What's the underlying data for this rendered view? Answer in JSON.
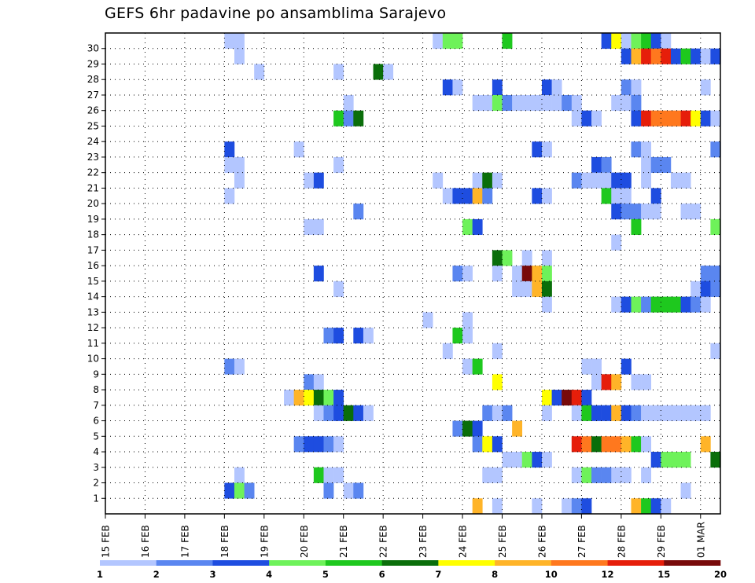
{
  "title": "GEFS 6hr padavine po ansamblima Sarajevo",
  "chart_data": {
    "type": "heatmap",
    "title": "GEFS 6hr padavine po ansamblima Sarajevo",
    "x_ticks": [
      "15 FEB",
      "16 FEB",
      "17 FEB",
      "18 FEB",
      "19 FEB",
      "20 FEB",
      "21 FEB",
      "22 FEB",
      "23 FEB",
      "24 FEB",
      "25 FEB",
      "26 FEB",
      "27 FEB",
      "28 FEB",
      "29 FEB",
      "01 MAR"
    ],
    "x_range": [
      0,
      61
    ],
    "y_ticks": [
      1,
      2,
      3,
      4,
      5,
      6,
      7,
      8,
      9,
      10,
      11,
      12,
      13,
      14,
      15,
      16,
      17,
      18,
      19,
      20,
      21,
      22,
      23,
      24,
      25,
      26,
      27,
      28,
      29,
      30
    ],
    "y_range": [
      0,
      30
    ],
    "grid": true,
    "colorbar": {
      "labels": [
        "1",
        "2",
        "3",
        "4",
        "5",
        "6",
        "7",
        "8",
        "10",
        "12",
        "15",
        "20"
      ],
      "colors": [
        "#b3c6ff",
        "#5a86f0",
        "#1e4de0",
        "#6ef25a",
        "#1ec81e",
        "#0a6e0a",
        "#ffff00",
        "#ffb428",
        "#ff781e",
        "#e61e0a",
        "#780a0a"
      ]
    },
    "cells": [
      [
        12,
        30,
        0
      ],
      [
        13,
        30,
        0
      ],
      [
        33,
        30,
        0
      ],
      [
        34,
        30,
        3
      ],
      [
        35,
        30,
        3
      ],
      [
        40,
        30,
        4
      ],
      [
        50,
        30,
        2
      ],
      [
        51,
        30,
        6
      ],
      [
        52,
        30,
        0
      ],
      [
        53,
        30,
        3
      ],
      [
        54,
        30,
        4
      ],
      [
        55,
        30,
        2
      ],
      [
        56,
        30,
        0
      ],
      [
        13,
        29,
        0
      ],
      [
        52,
        29,
        2
      ],
      [
        53,
        29,
        7
      ],
      [
        54,
        29,
        9
      ],
      [
        55,
        29,
        8
      ],
      [
        56,
        29,
        9
      ],
      [
        57,
        29,
        2
      ],
      [
        58,
        29,
        4
      ],
      [
        59,
        29,
        2
      ],
      [
        60,
        29,
        0
      ],
      [
        61,
        29,
        2
      ],
      [
        15,
        28,
        0
      ],
      [
        23,
        28,
        0
      ],
      [
        27,
        28,
        5
      ],
      [
        28,
        28,
        0
      ],
      [
        34,
        27,
        2
      ],
      [
        35,
        27,
        0
      ],
      [
        39,
        27,
        2
      ],
      [
        44,
        27,
        2
      ],
      [
        45,
        27,
        0
      ],
      [
        52,
        27,
        1
      ],
      [
        53,
        27,
        0
      ],
      [
        60,
        27,
        0
      ],
      [
        24,
        26,
        0
      ],
      [
        37,
        26,
        0
      ],
      [
        38,
        26,
        0
      ],
      [
        39,
        26,
        3
      ],
      [
        40,
        26,
        1
      ],
      [
        41,
        26,
        0
      ],
      [
        42,
        26,
        0
      ],
      [
        43,
        26,
        0
      ],
      [
        44,
        26,
        0
      ],
      [
        45,
        26,
        0
      ],
      [
        46,
        26,
        1
      ],
      [
        47,
        26,
        0
      ],
      [
        51,
        26,
        0
      ],
      [
        52,
        26,
        0
      ],
      [
        53,
        26,
        1
      ],
      [
        23,
        25,
        4
      ],
      [
        24,
        25,
        1
      ],
      [
        25,
        25,
        5
      ],
      [
        47,
        25,
        0
      ],
      [
        48,
        25,
        2
      ],
      [
        49,
        25,
        0
      ],
      [
        53,
        25,
        2
      ],
      [
        54,
        25,
        9
      ],
      [
        55,
        25,
        8
      ],
      [
        56,
        25,
        8
      ],
      [
        57,
        25,
        8
      ],
      [
        58,
        25,
        9
      ],
      [
        59,
        25,
        6
      ],
      [
        60,
        25,
        2
      ],
      [
        61,
        25,
        0
      ],
      [
        12,
        23,
        2
      ],
      [
        19,
        23,
        0
      ],
      [
        43,
        23,
        2
      ],
      [
        44,
        23,
        0
      ],
      [
        53,
        23,
        1
      ],
      [
        54,
        23,
        0
      ],
      [
        61,
        23,
        1
      ],
      [
        12,
        22,
        0
      ],
      [
        13,
        22,
        0
      ],
      [
        23,
        22,
        0
      ],
      [
        49,
        22,
        2
      ],
      [
        50,
        22,
        1
      ],
      [
        54,
        22,
        0
      ],
      [
        55,
        22,
        1
      ],
      [
        56,
        22,
        1
      ],
      [
        13,
        21,
        0
      ],
      [
        20,
        21,
        0
      ],
      [
        21,
        21,
        2
      ],
      [
        33,
        21,
        0
      ],
      [
        37,
        21,
        0
      ],
      [
        38,
        21,
        5
      ],
      [
        39,
        21,
        0
      ],
      [
        47,
        21,
        1
      ],
      [
        48,
        21,
        0
      ],
      [
        49,
        21,
        0
      ],
      [
        50,
        21,
        0
      ],
      [
        51,
        21,
        2
      ],
      [
        52,
        21,
        2
      ],
      [
        54,
        21,
        0
      ],
      [
        57,
        21,
        0
      ],
      [
        58,
        21,
        0
      ],
      [
        12,
        20,
        0
      ],
      [
        34,
        20,
        0
      ],
      [
        35,
        20,
        2
      ],
      [
        36,
        20,
        2
      ],
      [
        37,
        20,
        7
      ],
      [
        38,
        20,
        1
      ],
      [
        43,
        20,
        2
      ],
      [
        44,
        20,
        0
      ],
      [
        50,
        20,
        4
      ],
      [
        51,
        20,
        0
      ],
      [
        52,
        20,
        0
      ],
      [
        55,
        20,
        2
      ],
      [
        25,
        19,
        1
      ],
      [
        51,
        19,
        2
      ],
      [
        52,
        19,
        1
      ],
      [
        53,
        19,
        1
      ],
      [
        54,
        19,
        0
      ],
      [
        55,
        19,
        0
      ],
      [
        58,
        19,
        0
      ],
      [
        59,
        19,
        0
      ],
      [
        20,
        18,
        0
      ],
      [
        21,
        18,
        0
      ],
      [
        36,
        18,
        3
      ],
      [
        37,
        18,
        2
      ],
      [
        53,
        18,
        4
      ],
      [
        61,
        18,
        3
      ],
      [
        51,
        17,
        0
      ],
      [
        39,
        16,
        5
      ],
      [
        40,
        16,
        3
      ],
      [
        42,
        16,
        0
      ],
      [
        44,
        16,
        0
      ],
      [
        21,
        15,
        2
      ],
      [
        35,
        15,
        1
      ],
      [
        36,
        15,
        0
      ],
      [
        39,
        15,
        0
      ],
      [
        41,
        15,
        0
      ],
      [
        42,
        15,
        10
      ],
      [
        43,
        15,
        7
      ],
      [
        44,
        15,
        3
      ],
      [
        60,
        15,
        1
      ],
      [
        61,
        15,
        1
      ],
      [
        23,
        14,
        0
      ],
      [
        41,
        14,
        0
      ],
      [
        42,
        14,
        0
      ],
      [
        43,
        14,
        7
      ],
      [
        44,
        14,
        5
      ],
      [
        59,
        14,
        0
      ],
      [
        60,
        14,
        2
      ],
      [
        61,
        14,
        1
      ],
      [
        44,
        13,
        0
      ],
      [
        51,
        13,
        0
      ],
      [
        52,
        13,
        2
      ],
      [
        53,
        13,
        3
      ],
      [
        54,
        13,
        1
      ],
      [
        55,
        13,
        4
      ],
      [
        56,
        13,
        4
      ],
      [
        57,
        13,
        4
      ],
      [
        58,
        13,
        2
      ],
      [
        59,
        13,
        1
      ],
      [
        60,
        13,
        0
      ],
      [
        32,
        12,
        0
      ],
      [
        36,
        12,
        0
      ],
      [
        22,
        11,
        1
      ],
      [
        23,
        11,
        2
      ],
      [
        25,
        11,
        2
      ],
      [
        26,
        11,
        0
      ],
      [
        35,
        11,
        4
      ],
      [
        36,
        11,
        0
      ],
      [
        34,
        10,
        0
      ],
      [
        39,
        10,
        0
      ],
      [
        61,
        10,
        0
      ],
      [
        12,
        9,
        1
      ],
      [
        13,
        9,
        0
      ],
      [
        36,
        9,
        0
      ],
      [
        37,
        9,
        4
      ],
      [
        48,
        9,
        0
      ],
      [
        49,
        9,
        0
      ],
      [
        52,
        9,
        2
      ],
      [
        20,
        8,
        1
      ],
      [
        21,
        8,
        0
      ],
      [
        39,
        8,
        6
      ],
      [
        49,
        8,
        0
      ],
      [
        50,
        8,
        9
      ],
      [
        51,
        8,
        7
      ],
      [
        53,
        8,
        0
      ],
      [
        54,
        8,
        0
      ],
      [
        18,
        7,
        0
      ],
      [
        19,
        7,
        7
      ],
      [
        20,
        7,
        6
      ],
      [
        21,
        7,
        5
      ],
      [
        22,
        7,
        3
      ],
      [
        23,
        7,
        2
      ],
      [
        44,
        7,
        6
      ],
      [
        45,
        7,
        2
      ],
      [
        46,
        7,
        10
      ],
      [
        47,
        7,
        9
      ],
      [
        48,
        7,
        2
      ],
      [
        21,
        6,
        0
      ],
      [
        22,
        6,
        1
      ],
      [
        23,
        6,
        2
      ],
      [
        24,
        6,
        5
      ],
      [
        25,
        6,
        2
      ],
      [
        26,
        6,
        0
      ],
      [
        38,
        6,
        1
      ],
      [
        39,
        6,
        0
      ],
      [
        40,
        6,
        1
      ],
      [
        44,
        6,
        0
      ],
      [
        47,
        6,
        0
      ],
      [
        48,
        6,
        4
      ],
      [
        49,
        6,
        2
      ],
      [
        50,
        6,
        2
      ],
      [
        51,
        6,
        7
      ],
      [
        52,
        6,
        2
      ],
      [
        53,
        6,
        1
      ],
      [
        54,
        6,
        0
      ],
      [
        55,
        6,
        0
      ],
      [
        56,
        6,
        0
      ],
      [
        57,
        6,
        0
      ],
      [
        58,
        6,
        0
      ],
      [
        59,
        6,
        0
      ],
      [
        60,
        6,
        0
      ],
      [
        35,
        5,
        1
      ],
      [
        36,
        5,
        5
      ],
      [
        37,
        5,
        2
      ],
      [
        41,
        5,
        7
      ],
      [
        19,
        4,
        1
      ],
      [
        20,
        4,
        2
      ],
      [
        21,
        4,
        2
      ],
      [
        22,
        4,
        1
      ],
      [
        23,
        4,
        0
      ],
      [
        37,
        4,
        1
      ],
      [
        38,
        4,
        6
      ],
      [
        39,
        4,
        2
      ],
      [
        47,
        4,
        9
      ],
      [
        48,
        4,
        8
      ],
      [
        49,
        4,
        5
      ],
      [
        50,
        4,
        8
      ],
      [
        51,
        4,
        8
      ],
      [
        52,
        4,
        7
      ],
      [
        53,
        4,
        4
      ],
      [
        54,
        4,
        0
      ],
      [
        60,
        4,
        7
      ],
      [
        40,
        3,
        0
      ],
      [
        41,
        3,
        0
      ],
      [
        42,
        3,
        3
      ],
      [
        43,
        3,
        2
      ],
      [
        44,
        3,
        0
      ],
      [
        55,
        3,
        2
      ],
      [
        56,
        3,
        3
      ],
      [
        57,
        3,
        3
      ],
      [
        58,
        3,
        3
      ],
      [
        61,
        3,
        5
      ],
      [
        13,
        2,
        0
      ],
      [
        21,
        2,
        4
      ],
      [
        22,
        2,
        0
      ],
      [
        23,
        2,
        0
      ],
      [
        38,
        2,
        0
      ],
      [
        39,
        2,
        0
      ],
      [
        47,
        2,
        0
      ],
      [
        48,
        2,
        3
      ],
      [
        49,
        2,
        1
      ],
      [
        50,
        2,
        1
      ],
      [
        51,
        2,
        0
      ],
      [
        52,
        2,
        0
      ],
      [
        54,
        2,
        0
      ],
      [
        12,
        1,
        2
      ],
      [
        13,
        1,
        3
      ],
      [
        14,
        1,
        1
      ],
      [
        22,
        1,
        1
      ],
      [
        24,
        1,
        0
      ],
      [
        25,
        1,
        1
      ],
      [
        58,
        1,
        0
      ],
      [
        37,
        0,
        7
      ],
      [
        39,
        0,
        0
      ],
      [
        43,
        0,
        0
      ],
      [
        46,
        0,
        0
      ],
      [
        47,
        0,
        1
      ],
      [
        48,
        0,
        2
      ],
      [
        53,
        0,
        7
      ],
      [
        54,
        0,
        4
      ],
      [
        55,
        0,
        2
      ],
      [
        56,
        0,
        0
      ]
    ]
  }
}
